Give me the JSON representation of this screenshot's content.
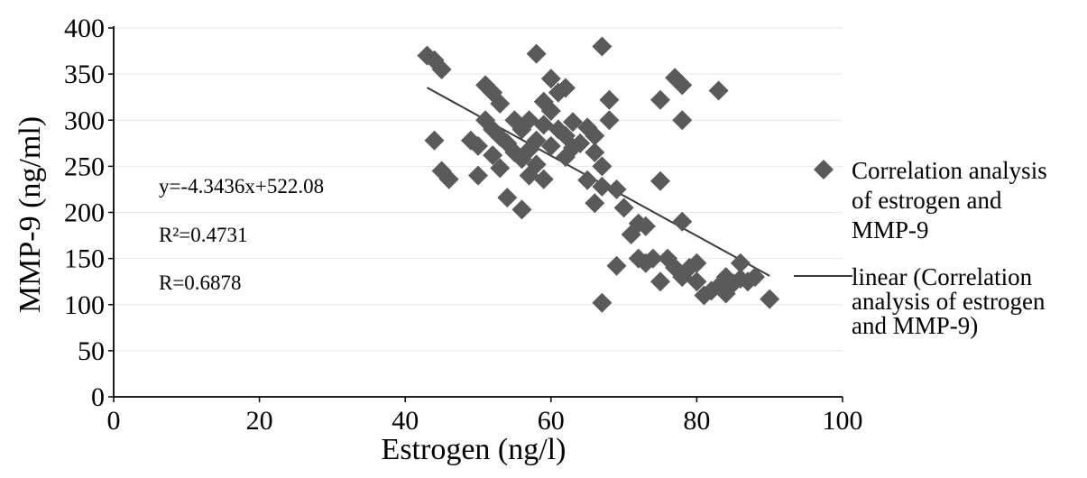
{
  "chart_data": {
    "type": "scatter",
    "title": "",
    "xlabel": "Estrogen (ng/l)",
    "ylabel": "MMP-9 (ng/ml)",
    "xlim": [
      0,
      100
    ],
    "ylim": [
      0,
      400
    ],
    "x_ticks": [
      "0",
      "20",
      "40",
      "60",
      "80",
      "100"
    ],
    "y_ticks": [
      "0",
      "50",
      "100",
      "150",
      "200",
      "250",
      "300",
      "350",
      "400"
    ],
    "grid": "horizontal",
    "legend_position": "right",
    "annotations": [
      "y=-4.3436x+522.08",
      "R²=0.4731",
      "R=0.6878"
    ],
    "series": [
      {
        "name": "Correlation analysis of estrogen and MMP-9",
        "marker": "diamond",
        "color": "#5a5a5a",
        "points": [
          [
            43,
            370
          ],
          [
            44,
            365
          ],
          [
            45,
            355
          ],
          [
            44,
            278
          ],
          [
            45,
            245
          ],
          [
            46,
            236
          ],
          [
            49,
            278
          ],
          [
            50,
            272
          ],
          [
            50,
            240
          ],
          [
            51,
            338
          ],
          [
            51,
            300
          ],
          [
            52,
            330
          ],
          [
            52,
            290
          ],
          [
            52,
            262
          ],
          [
            53,
            318
          ],
          [
            53,
            282
          ],
          [
            53,
            248
          ],
          [
            54,
            275
          ],
          [
            54,
            216
          ],
          [
            55,
            265
          ],
          [
            55,
            300
          ],
          [
            56,
            258
          ],
          [
            56,
            203
          ],
          [
            56,
            290
          ],
          [
            57,
            268
          ],
          [
            57,
            300
          ],
          [
            57,
            240
          ],
          [
            58,
            372
          ],
          [
            58,
            278
          ],
          [
            58,
            252
          ],
          [
            59,
            236
          ],
          [
            59,
            320
          ],
          [
            59,
            295
          ],
          [
            60,
            345
          ],
          [
            60,
            310
          ],
          [
            60,
            272
          ],
          [
            61,
            330
          ],
          [
            61,
            290
          ],
          [
            62,
            335
          ],
          [
            62,
            283
          ],
          [
            62,
            260
          ],
          [
            63,
            298
          ],
          [
            63,
            270
          ],
          [
            64,
            275
          ],
          [
            65,
            292
          ],
          [
            65,
            235
          ],
          [
            66,
            210
          ],
          [
            66,
            265
          ],
          [
            66,
            283
          ],
          [
            67,
            380
          ],
          [
            67,
            250
          ],
          [
            67,
            228
          ],
          [
            67,
            102
          ],
          [
            68,
            300
          ],
          [
            68,
            322
          ],
          [
            69,
            225
          ],
          [
            69,
            142
          ],
          [
            70,
            205
          ],
          [
            71,
            176
          ],
          [
            72,
            188
          ],
          [
            72,
            150
          ],
          [
            73,
            145
          ],
          [
            73,
            185
          ],
          [
            74,
            150
          ],
          [
            75,
            322
          ],
          [
            75,
            234
          ],
          [
            75,
            125
          ],
          [
            76,
            150
          ],
          [
            77,
            346
          ],
          [
            77,
            140
          ],
          [
            78,
            338
          ],
          [
            78,
            300
          ],
          [
            78,
            190
          ],
          [
            78,
            130
          ],
          [
            79,
            140
          ],
          [
            80,
            145
          ],
          [
            80,
            125
          ],
          [
            81,
            110
          ],
          [
            82,
            115
          ],
          [
            83,
            120
          ],
          [
            83,
            332
          ],
          [
            84,
            130
          ],
          [
            84,
            112
          ],
          [
            85,
            123
          ],
          [
            86,
            145
          ],
          [
            86,
            128
          ],
          [
            87,
            125
          ],
          [
            88,
            130
          ],
          [
            90,
            106
          ]
        ]
      },
      {
        "name": "linear (Correlation analysis of estrogen and MMP-9)",
        "type": "line",
        "color": "#3a3a3a",
        "slope": -4.3436,
        "intercept": 522.08,
        "x_range": [
          43,
          90
        ]
      }
    ],
    "legend_lines": [
      [
        "Correlation analysis",
        "of estrogen and",
        "MMP-9"
      ],
      [
        "linear (Correlation",
        "analysis of estrogen",
        "and MMP-9)"
      ]
    ]
  }
}
